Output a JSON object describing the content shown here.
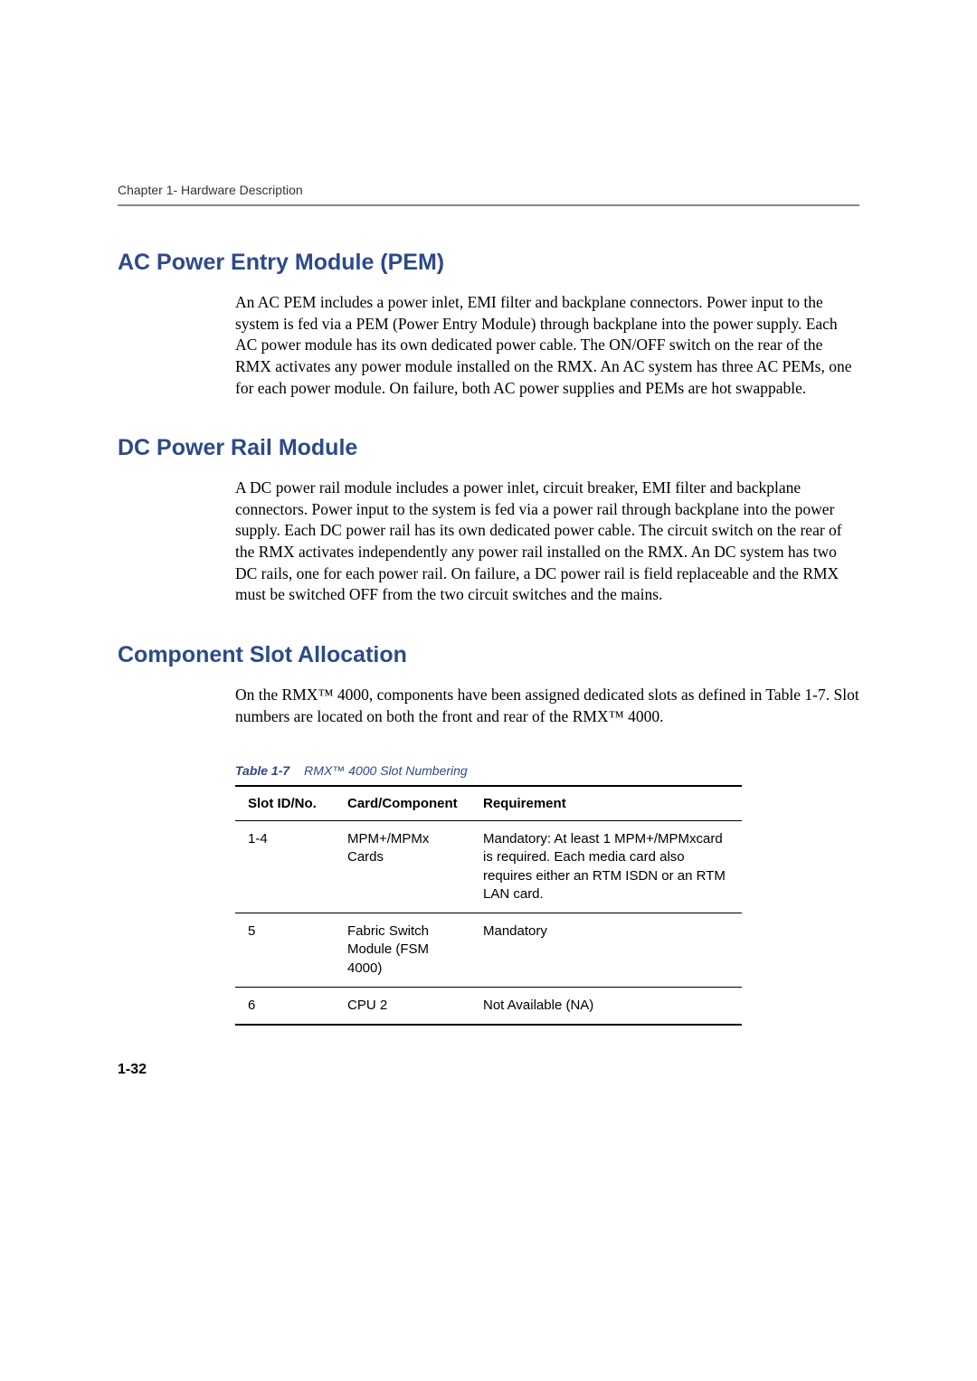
{
  "header": {
    "chapter_label": "Chapter 1- Hardware Description"
  },
  "sections": {
    "ac_pem": {
      "heading": "AC Power Entry Module (PEM)",
      "body": "An AC PEM includes a power inlet, EMI filter and backplane connectors. Power input to the system is fed via a PEM (Power Entry Module) through backplane into the power supply. Each AC power module has its own dedicated power cable. The ON/OFF switch on the rear of the RMX activates any power module installed on the RMX. An AC system has three AC PEMs, one for each power module. On failure, both AC power supplies and PEMs are hot swappable."
    },
    "dc_rail": {
      "heading": "DC Power Rail Module",
      "body": "A DC power rail module includes a power inlet, circuit breaker, EMI filter and backplane connectors. Power input to the system is fed via a power rail through backplane into the power supply. Each DC power rail has its own dedicated power cable. The circuit switch on the rear of the RMX activates independently any power rail installed on the RMX. An DC system has two DC rails, one for each power rail. On failure, a DC power rail is field replaceable and the RMX must be switched OFF from the two circuit switches and the mains."
    },
    "slot_alloc": {
      "heading": "Component Slot Allocation",
      "body": "On the RMX™ 4000, components have been assigned dedicated slots as defined in Table 1-7. Slot numbers are located on both the front and rear of the RMX™ 4000."
    }
  },
  "table": {
    "caption_label": "Table 1-7",
    "caption_title": "RMX™ 4000 Slot Numbering",
    "headers": {
      "slot": "Slot ID/No.",
      "component": "Card/Component",
      "requirement": "Requirement"
    },
    "rows": [
      {
        "slot": "1-4",
        "component": "MPM+/MPMx Cards",
        "requirement": "Mandatory: At least 1 MPM+/MPMxcard is required. Each media card also requires either an RTM ISDN or an RTM LAN card."
      },
      {
        "slot": "5",
        "component": "Fabric Switch Module (FSM 4000)",
        "requirement": "Mandatory"
      },
      {
        "slot": "6",
        "component": "CPU 2",
        "requirement": "Not Available (NA)"
      }
    ]
  },
  "page_number": "1-32",
  "colors": {
    "heading_color": "#2d4a8a",
    "text_color": "#000000",
    "header_text_color": "#333333",
    "rule_color": "#888888",
    "background": "#ffffff"
  }
}
